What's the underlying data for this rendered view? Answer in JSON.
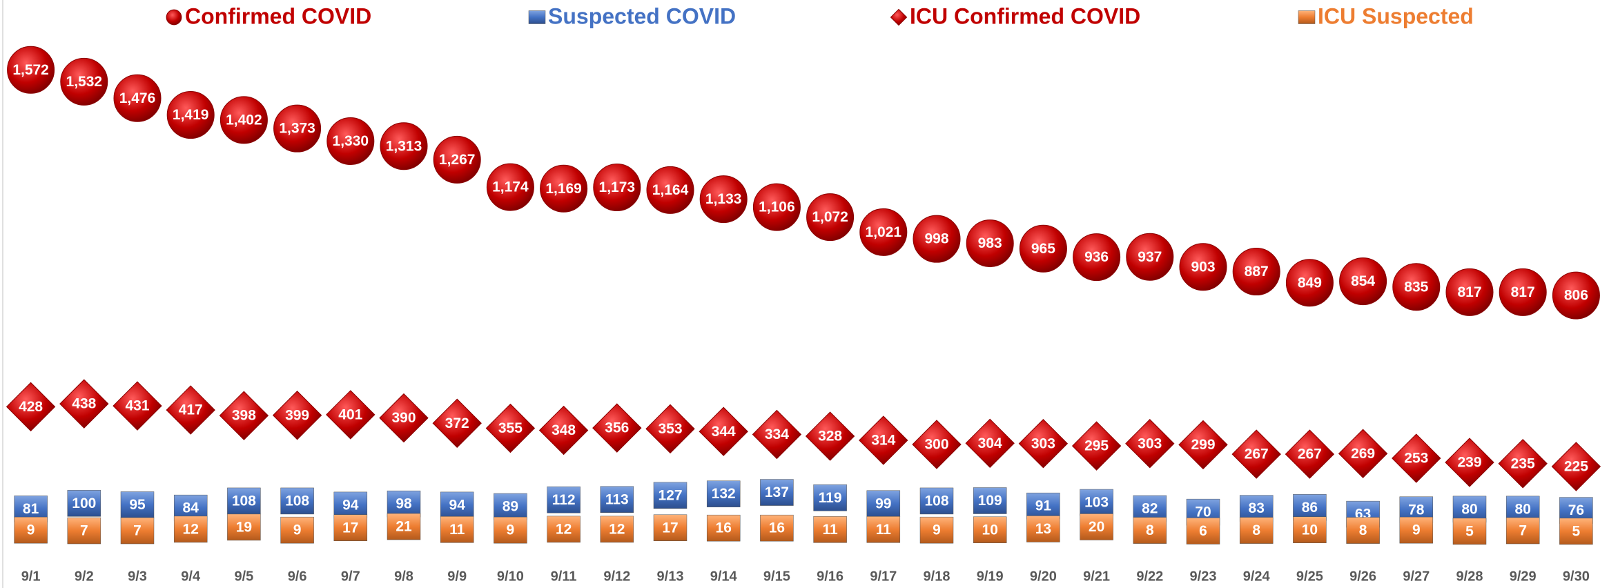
{
  "chart_data": {
    "type": "scatter",
    "categories": [
      "9/1",
      "9/2",
      "9/3",
      "9/4",
      "9/5",
      "9/6",
      "9/7",
      "9/8",
      "9/9",
      "9/10",
      "9/11",
      "9/12",
      "9/13",
      "9/14",
      "9/15",
      "9/16",
      "9/17",
      "9/18",
      "9/19",
      "9/20",
      "9/21",
      "9/22",
      "9/23",
      "9/24",
      "9/25",
      "9/26",
      "9/27",
      "9/28",
      "9/29",
      "9/30"
    ],
    "ylim": [
      0,
      1800
    ],
    "series": [
      {
        "name": "Confirmed COVID",
        "color": "#c00000",
        "marker": "circle",
        "values": [
          1572,
          1532,
          1476,
          1419,
          1402,
          1373,
          1330,
          1313,
          1267,
          1174,
          1169,
          1173,
          1164,
          1133,
          1106,
          1072,
          1021,
          998,
          983,
          965,
          936,
          937,
          903,
          887,
          849,
          854,
          835,
          817,
          817,
          806
        ],
        "value_labels": [
          "1,572",
          "1,532",
          "1,476",
          "1,419",
          "1,402",
          "1,373",
          "1,330",
          "1,313",
          "1,267",
          "1,174",
          "1,169",
          "1,173",
          "1,164",
          "1,133",
          "1,106",
          "1,072",
          "1,021",
          "998",
          "983",
          "965",
          "936",
          "937",
          "903",
          "887",
          "849",
          "854",
          "835",
          "817",
          "817",
          "806"
        ]
      },
      {
        "name": "Suspected COVID",
        "color": "#4472c4",
        "marker": "square",
        "values": [
          81,
          100,
          95,
          84,
          108,
          108,
          94,
          98,
          94,
          89,
          112,
          113,
          127,
          132,
          137,
          119,
          99,
          108,
          109,
          91,
          103,
          82,
          70,
          83,
          86,
          63,
          78,
          80,
          80,
          76
        ]
      },
      {
        "name": "ICU Confirmed COVID",
        "color": "#c00000",
        "marker": "diamond",
        "values": [
          428,
          438,
          431,
          417,
          398,
          399,
          401,
          390,
          372,
          355,
          348,
          356,
          353,
          344,
          334,
          328,
          314,
          300,
          304,
          303,
          295,
          303,
          299,
          267,
          267,
          269,
          253,
          239,
          235,
          225
        ]
      },
      {
        "name": "ICU Suspected",
        "color": "#ed7d31",
        "marker": "square",
        "values": [
          9,
          7,
          7,
          12,
          19,
          9,
          17,
          21,
          11,
          9,
          12,
          12,
          17,
          16,
          16,
          11,
          11,
          9,
          10,
          13,
          20,
          8,
          6,
          8,
          10,
          8,
          9,
          5,
          7,
          5
        ]
      }
    ]
  }
}
